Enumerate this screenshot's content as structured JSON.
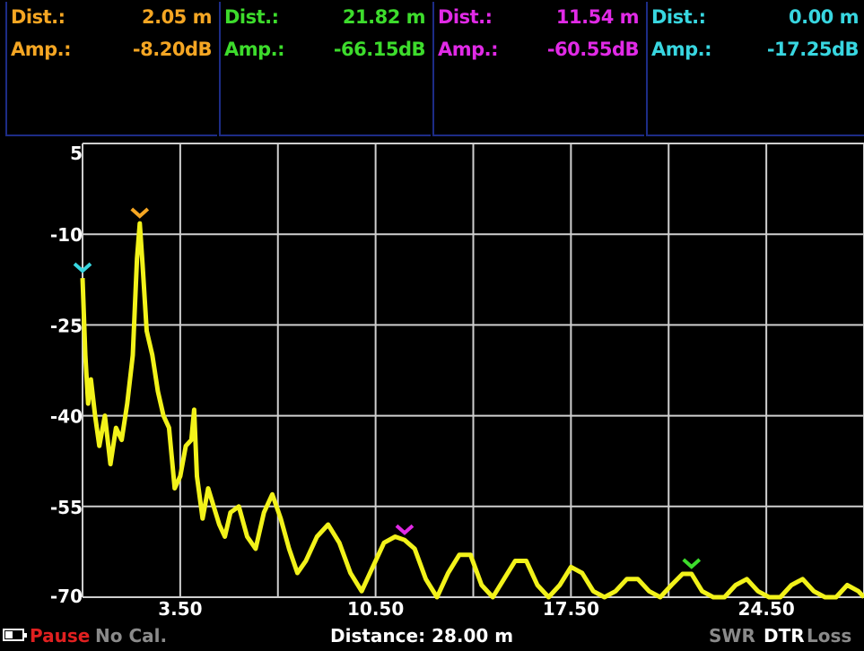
{
  "markers": [
    {
      "dist_label": "Dist.:",
      "dist_value": "2.05 m",
      "amp_label": "Amp.:",
      "amp_value": "-8.20dB",
      "color": "#f5a623"
    },
    {
      "dist_label": "Dist.:",
      "dist_value": "21.82 m",
      "amp_label": "Amp.:",
      "amp_value": "-66.15dB",
      "color": "#3ddc2c"
    },
    {
      "dist_label": "Dist.:",
      "dist_value": "11.54 m",
      "amp_label": "Amp.:",
      "amp_value": "-60.55dB",
      "color": "#e12ae6"
    },
    {
      "dist_label": "Dist.:",
      "dist_value": "0.00 m",
      "amp_label": "Amp.:",
      "amp_value": "-17.25dB",
      "color": "#38d6e0"
    }
  ],
  "chart_data": {
    "type": "line",
    "trace_color": "#f2f21a",
    "grid": true,
    "xlim": [
      0,
      28
    ],
    "ylim": [
      -70,
      5
    ],
    "y_ticks": [
      "5",
      "-10",
      "-25",
      "-40",
      "-55",
      "-70"
    ],
    "x_ticks": [
      "3.50",
      "10.50",
      "17.50",
      "24.50"
    ],
    "x_tick_values": [
      3.5,
      10.5,
      17.5,
      24.5
    ],
    "y_tick_values": [
      5,
      -10,
      -25,
      -40,
      -55,
      -70
    ],
    "series": [
      {
        "x": [
          0.0,
          0.1,
          0.2,
          0.3,
          0.45,
          0.6,
          0.8,
          1.0,
          1.2,
          1.4,
          1.6,
          1.8,
          1.95,
          2.05,
          2.15,
          2.3,
          2.5,
          2.7,
          2.9,
          3.1,
          3.3,
          3.5,
          3.7,
          3.9,
          4.0,
          4.1,
          4.3,
          4.5,
          4.7,
          4.9,
          5.1,
          5.3,
          5.6,
          5.9,
          6.2,
          6.5,
          6.8,
          7.1,
          7.4,
          7.7,
          8.0,
          8.4,
          8.8,
          9.2,
          9.6,
          10.0,
          10.4,
          10.8,
          11.2,
          11.54,
          11.9,
          12.3,
          12.7,
          13.1,
          13.5,
          13.9,
          14.3,
          14.7,
          15.1,
          15.5,
          15.9,
          16.3,
          16.7,
          17.1,
          17.5,
          17.9,
          18.3,
          18.7,
          19.1,
          19.5,
          19.9,
          20.3,
          20.7,
          21.1,
          21.5,
          21.82,
          22.2,
          22.6,
          23.0,
          23.4,
          23.8,
          24.2,
          24.6,
          25.0,
          25.4,
          25.8,
          26.2,
          26.6,
          27.0,
          27.4,
          27.8,
          28.0
        ],
        "y": [
          -17.25,
          -30,
          -38,
          -34,
          -40,
          -45,
          -40,
          -48,
          -42,
          -44,
          -38,
          -30,
          -14,
          -8.2,
          -15,
          -26,
          -30,
          -36,
          -40,
          -42,
          -52,
          -50,
          -45,
          -44,
          -39,
          -50,
          -57,
          -52,
          -55,
          -58,
          -60,
          -56,
          -55,
          -60,
          -62,
          -56,
          -53,
          -57,
          -62,
          -66,
          -64,
          -60,
          -58,
          -61,
          -66,
          -69,
          -65,
          -61,
          -60,
          -60.55,
          -62,
          -67,
          -70,
          -66,
          -63,
          -63,
          -68,
          -70,
          -67,
          -64,
          -64,
          -68,
          -70,
          -68,
          -65,
          -66,
          -69,
          -70,
          -69,
          -67,
          -67,
          -69,
          -70,
          -68,
          -66.15,
          -66.15,
          -69,
          -70,
          -70,
          -68,
          -67,
          -69,
          -70,
          -70,
          -68,
          -67,
          -69,
          -70,
          -70,
          -68,
          -69,
          -70
        ]
      }
    ]
  },
  "status": {
    "battery_icon": "battery-icon",
    "pause": "Pause",
    "calibration": "No Cal.",
    "distance": "Distance: 28.00 m",
    "mode_swr": "SWR",
    "mode_dtr": "DTR",
    "mode_loss": "Loss"
  }
}
